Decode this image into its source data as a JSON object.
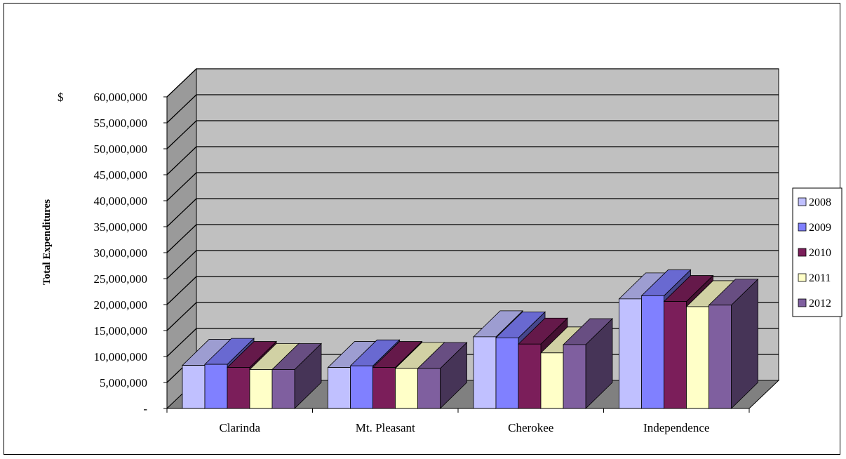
{
  "chart_data": {
    "type": "bar",
    "style": "3d-clustered-column",
    "ylabel": "Total Expenditures",
    "ylim": [
      0,
      60000000
    ],
    "ytick_step": 5000000,
    "yticks": [
      "-",
      "5,000,000",
      "10,000,000",
      "15,000,000",
      "20,000,000",
      "25,000,000",
      "30,000,000",
      "35,000,000",
      "40,000,000",
      "45,000,000",
      "50,000,000",
      "55,000,000",
      "60,000,000"
    ],
    "ytick_prefix": "$",
    "categories": [
      "Clarinda",
      "Mt. Pleasant",
      "Cherokee",
      "Independence"
    ],
    "series": [
      {
        "name": "2008",
        "color": "#C0C0FF",
        "values": [
          8300000,
          7900000,
          13800000,
          21100000
        ]
      },
      {
        "name": "2009",
        "color": "#8080FF",
        "values": [
          8500000,
          8200000,
          13600000,
          21700000
        ]
      },
      {
        "name": "2010",
        "color": "#7B1E5A",
        "values": [
          7900000,
          7900000,
          12400000,
          20600000
        ]
      },
      {
        "name": "2011",
        "color": "#FFFFC8",
        "values": [
          7500000,
          7700000,
          10700000,
          19600000
        ]
      },
      {
        "name": "2012",
        "color": "#7F5F9F",
        "values": [
          7500000,
          7700000,
          12300000,
          19900000
        ]
      }
    ],
    "legend_position": "right",
    "grid": true,
    "wall_color": "#C0C0C0",
    "floor_color": "#808080"
  }
}
